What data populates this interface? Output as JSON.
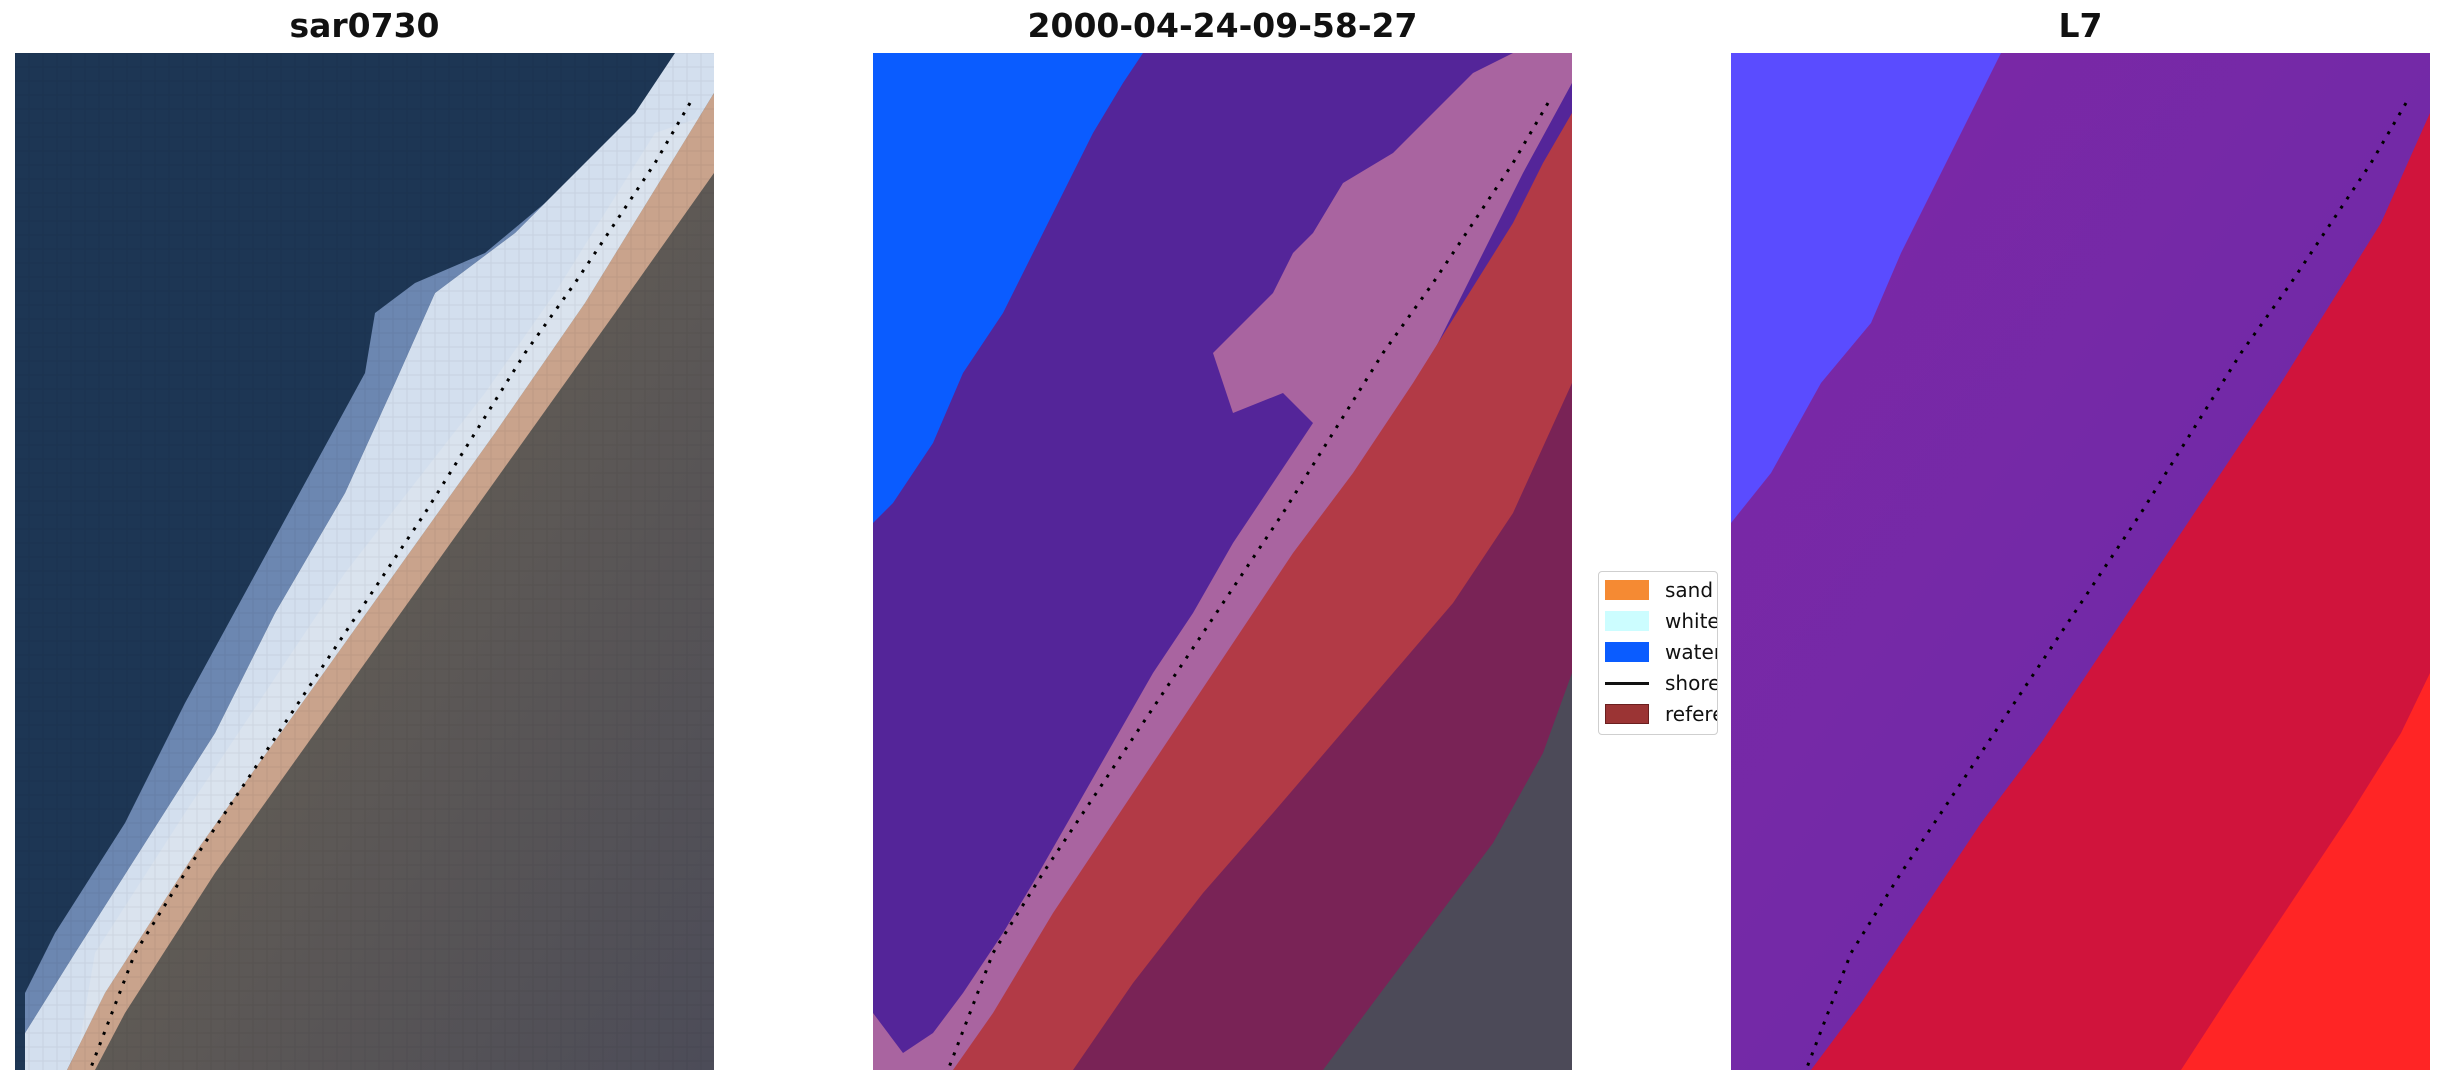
{
  "panels": {
    "left": {
      "title": "sar0730"
    },
    "middle": {
      "title": "2000-04-24-09-58-27"
    },
    "right": {
      "title": "L7"
    }
  },
  "legend": {
    "items": [
      {
        "label": "sand",
        "color": "#f58a33",
        "kind": "patch"
      },
      {
        "label": "whitew",
        "color": "#ccfdff",
        "kind": "patch"
      },
      {
        "label": "water",
        "color": "#0a5cff",
        "kind": "patch"
      },
      {
        "label": "shorel",
        "color": "#111111",
        "kind": "line"
      },
      {
        "label": "referer",
        "color": "#9b3434",
        "kind": "patch"
      }
    ]
  },
  "colors": {
    "deep_water": "#1c3350",
    "surf": "#e8f2ff",
    "beach": "#c9a38c",
    "land": "#5a5a5a",
    "class_water": "#0a5cff",
    "class_purple": "#542599",
    "class_pink": "#a964a0",
    "class_red": "#b23a46",
    "class_dark": "#762257",
    "ndwi_blue": "#5a4cff",
    "ndwi_purple": "#7c2aa8",
    "ndwi_red": "#d0143c",
    "ndwi_bright_red": "#ff2525"
  }
}
